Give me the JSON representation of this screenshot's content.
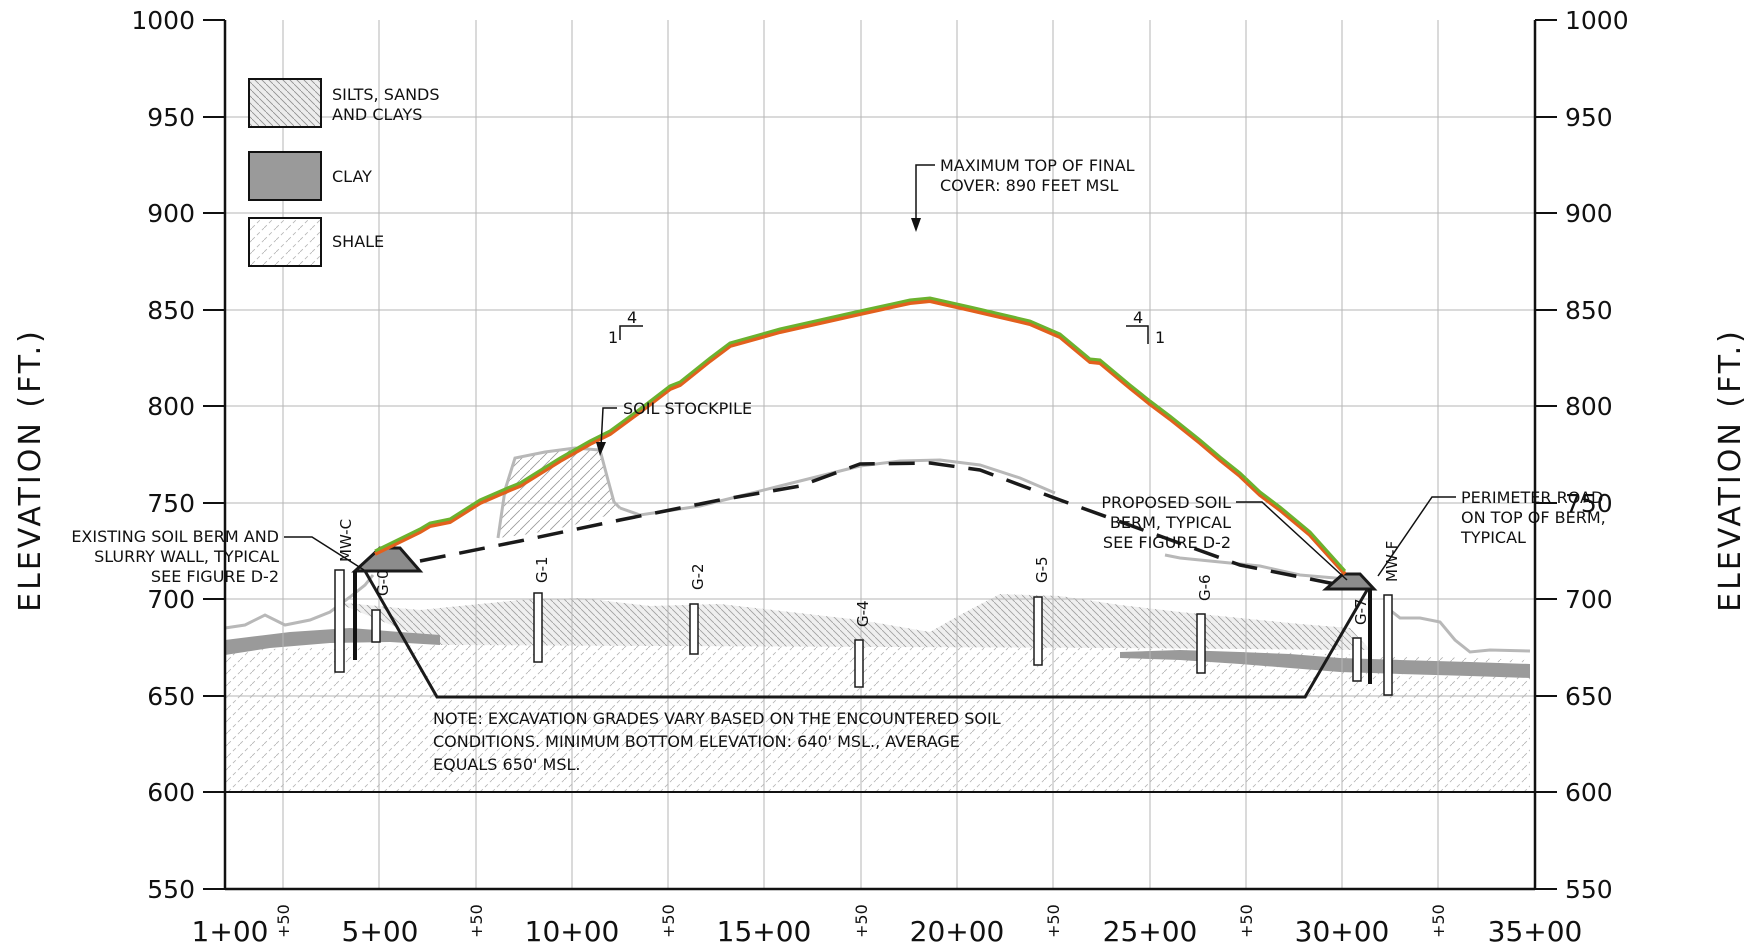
{
  "axes": {
    "y_left_title": "ELEVATION (FT.)",
    "y_right_title": "ELEVATION (FT.)",
    "y_ticks": [
      "1000",
      "950",
      "900",
      "850",
      "800",
      "750",
      "700",
      "650",
      "600",
      "550"
    ],
    "x_ticks": [
      "1+00",
      "5+00",
      "10+00",
      "15+00",
      "20+00",
      "25+00",
      "30+00",
      "35+00"
    ],
    "x_half_label": "+50"
  },
  "legend": {
    "silts_line1": "SILTS, SANDS",
    "silts_line2": "AND CLAYS",
    "clay": "CLAY",
    "shale": "SHALE"
  },
  "annotations": {
    "max_cover_line1": "MAXIMUM TOP OF FINAL",
    "max_cover_line2": "COVER: 890 FEET MSL",
    "stockpile": "SOIL STOCKPILE",
    "existing_berm_line1": "EXISTING SOIL BERM AND",
    "existing_berm_line2": "SLURRY WALL, TYPICAL",
    "existing_berm_line3": "SEE FIGURE D-2",
    "proposed_berm_line1": "PROPOSED SOIL",
    "proposed_berm_line2": "BERM, TYPICAL",
    "proposed_berm_line3": "SEE FIGURE D-2",
    "perimeter_line1": "PERIMETER ROAD",
    "perimeter_line2": "ON TOP OF BERM,",
    "perimeter_line3": "TYPICAL",
    "note_line1": "NOTE: EXCAVATION GRADES VARY BASED ON THE ENCOUNTERED SOIL",
    "note_line2": "CONDITIONS.  MINIMUM BOTTOM ELEVATION: 640' MSL., AVERAGE",
    "note_line3": "EQUALS 650' MSL.",
    "slope_left_run": "4",
    "slope_left_rise": "1",
    "slope_right_run": "4",
    "slope_right_rise": "1"
  },
  "wells": {
    "mw_c": "MW-C",
    "mw_f": "MW-F",
    "g_0": "G-0",
    "g_1": "G-1",
    "g_2": "G-2",
    "g_4": "G-4",
    "g_5": "G-5",
    "g_6": "G-6",
    "g_7": "G-7"
  },
  "colors": {
    "final_cover_top": "#6bb22e",
    "final_cover_under": "#e2601d",
    "clay_fill": "#9a9a9a",
    "existing_ground": "#b8b8b8",
    "excavation": "#1a1a1a"
  }
}
